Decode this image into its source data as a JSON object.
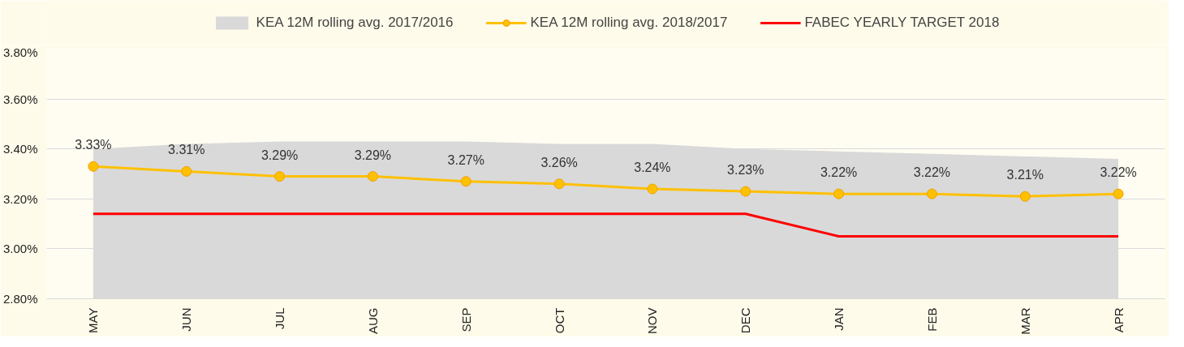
{
  "chart_data": {
    "type": "line",
    "categories": [
      "MAY",
      "JUN",
      "JUL",
      "AUG",
      "SEP",
      "OCT",
      "NOV",
      "DEC",
      "JAN",
      "FEB",
      "MAR",
      "APR"
    ],
    "ylim": [
      2.8,
      3.8
    ],
    "yticks": [
      {
        "value": 2.8,
        "label": "2.80%"
      },
      {
        "value": 3.0,
        "label": "3.00%"
      },
      {
        "value": 3.2,
        "label": "3.20%"
      },
      {
        "value": 3.4,
        "label": "3.40%"
      },
      {
        "value": 3.6,
        "label": "3.60%"
      },
      {
        "value": 3.8,
        "label": "3.80%"
      }
    ],
    "grid": "y",
    "legend": "top",
    "series": [
      {
        "name": "KEA 12M rolling avg. 2017/2016",
        "type": "area",
        "color": "#d9d9d9",
        "values": [
          3.4,
          3.42,
          3.43,
          3.43,
          3.43,
          3.42,
          3.42,
          3.4,
          3.39,
          3.38,
          3.37,
          3.36
        ]
      },
      {
        "name": "KEA 12M rolling avg. 2018/2017",
        "color": "#ffc000",
        "marker": "circle",
        "values": [
          3.33,
          3.31,
          3.29,
          3.29,
          3.27,
          3.26,
          3.24,
          3.23,
          3.22,
          3.22,
          3.21,
          3.22
        ],
        "value_labels": [
          "3.33%",
          "3.31%",
          "3.29%",
          "3.29%",
          "3.27%",
          "3.26%",
          "3.24%",
          "3.23%",
          "3.22%",
          "3.22%",
          "3.21%",
          "3.22%"
        ]
      },
      {
        "name": "FABEC YEARLY TARGET 2018",
        "color": "#ff0000",
        "values": [
          3.14,
          3.14,
          3.14,
          3.14,
          3.14,
          3.14,
          3.14,
          3.14,
          3.05,
          3.05,
          3.05,
          3.05
        ]
      }
    ]
  }
}
